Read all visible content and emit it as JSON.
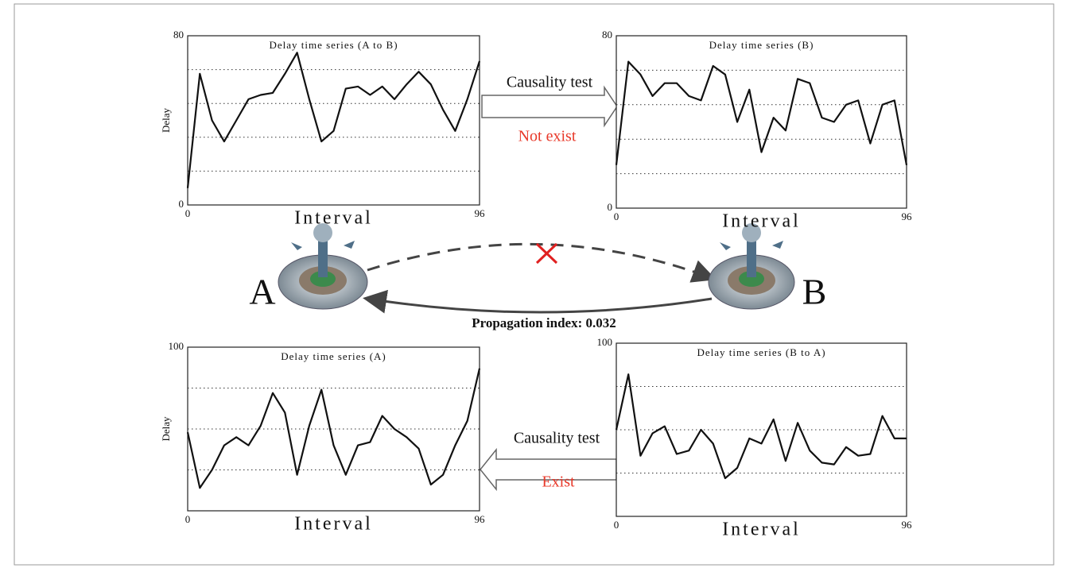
{
  "chart_data": [
    {
      "type": "line",
      "title": "Delay time series (A  to B)",
      "ylabel": "Delay",
      "xlabel": "Interval",
      "xlim": [
        0,
        96
      ],
      "xticks": [
        0,
        96
      ],
      "ylim": [
        0,
        80
      ],
      "yticks": [
        0,
        80
      ],
      "grid_lines": [
        16,
        32,
        48,
        64
      ],
      "color": "#111111",
      "x": [
        0,
        4,
        8,
        12,
        16,
        20,
        24,
        28,
        32,
        36,
        40,
        44,
        48,
        52,
        56,
        60,
        64,
        68,
        72,
        76,
        80,
        84,
        88,
        92,
        96
      ],
      "values": [
        8,
        62,
        40,
        30,
        40,
        50,
        52,
        53,
        62,
        72,
        50,
        30,
        35,
        55,
        56,
        52,
        56,
        50,
        57,
        63,
        57,
        45,
        35,
        50,
        68
      ]
    },
    {
      "type": "line",
      "title": "Delay time series (B)",
      "xlabel": "Interval",
      "xlim": [
        0,
        96
      ],
      "xticks": [
        0,
        96
      ],
      "ylim": [
        0,
        80
      ],
      "yticks": [
        0,
        80
      ],
      "grid_lines": [
        16,
        32,
        48,
        64
      ],
      "color": "#111111",
      "x": [
        0,
        4,
        8,
        12,
        16,
        20,
        24,
        28,
        32,
        36,
        40,
        44,
        48,
        52,
        56,
        60,
        64,
        68,
        72,
        76,
        80,
        84,
        88,
        92,
        96
      ],
      "values": [
        20,
        68,
        62,
        52,
        58,
        58,
        52,
        50,
        66,
        62,
        40,
        55,
        26,
        42,
        36,
        60,
        58,
        42,
        40,
        48,
        50,
        30,
        48,
        50,
        20
      ]
    },
    {
      "type": "line",
      "title": "Delay time series (A)",
      "ylabel": "Delay",
      "xlabel": "Interval",
      "xlim": [
        0,
        96
      ],
      "xticks": [
        0,
        96
      ],
      "ylim": [
        0,
        100
      ],
      "yticks": [
        100
      ],
      "grid_lines": [
        25,
        50,
        75
      ],
      "color": "#111111",
      "x": [
        0,
        4,
        8,
        12,
        16,
        20,
        24,
        28,
        32,
        36,
        40,
        44,
        48,
        52,
        56,
        60,
        64,
        68,
        72,
        76,
        80,
        84,
        88,
        92,
        96
      ],
      "values": [
        48,
        14,
        25,
        40,
        45,
        40,
        52,
        72,
        60,
        22,
        52,
        74,
        40,
        22,
        40,
        42,
        58,
        50,
        45,
        38,
        16,
        22,
        40,
        55,
        87
      ]
    },
    {
      "type": "line",
      "title": "Delay time series (B  to A)",
      "xlabel": "Interval",
      "xlim": [
        0,
        96
      ],
      "xticks": [
        0,
        96
      ],
      "ylim": [
        0,
        100
      ],
      "yticks": [
        100
      ],
      "grid_lines": [
        25,
        50,
        75
      ],
      "color": "#111111",
      "x": [
        0,
        4,
        8,
        12,
        16,
        20,
        24,
        28,
        32,
        36,
        40,
        44,
        48,
        52,
        56,
        60,
        64,
        68,
        72,
        76,
        80,
        84,
        88,
        92,
        96
      ],
      "values": [
        50,
        82,
        35,
        48,
        52,
        36,
        38,
        50,
        42,
        22,
        28,
        45,
        42,
        56,
        32,
        54,
        38,
        31,
        30,
        40,
        35,
        36,
        58,
        45,
        45
      ]
    }
  ],
  "labels": {
    "test_top": "Causality test",
    "result_top": "Not exist",
    "test_bottom": "Causality test",
    "result_bottom": "Exist",
    "node_a": "A",
    "node_b": "B",
    "propagation": "Propagation index: 0.032"
  }
}
